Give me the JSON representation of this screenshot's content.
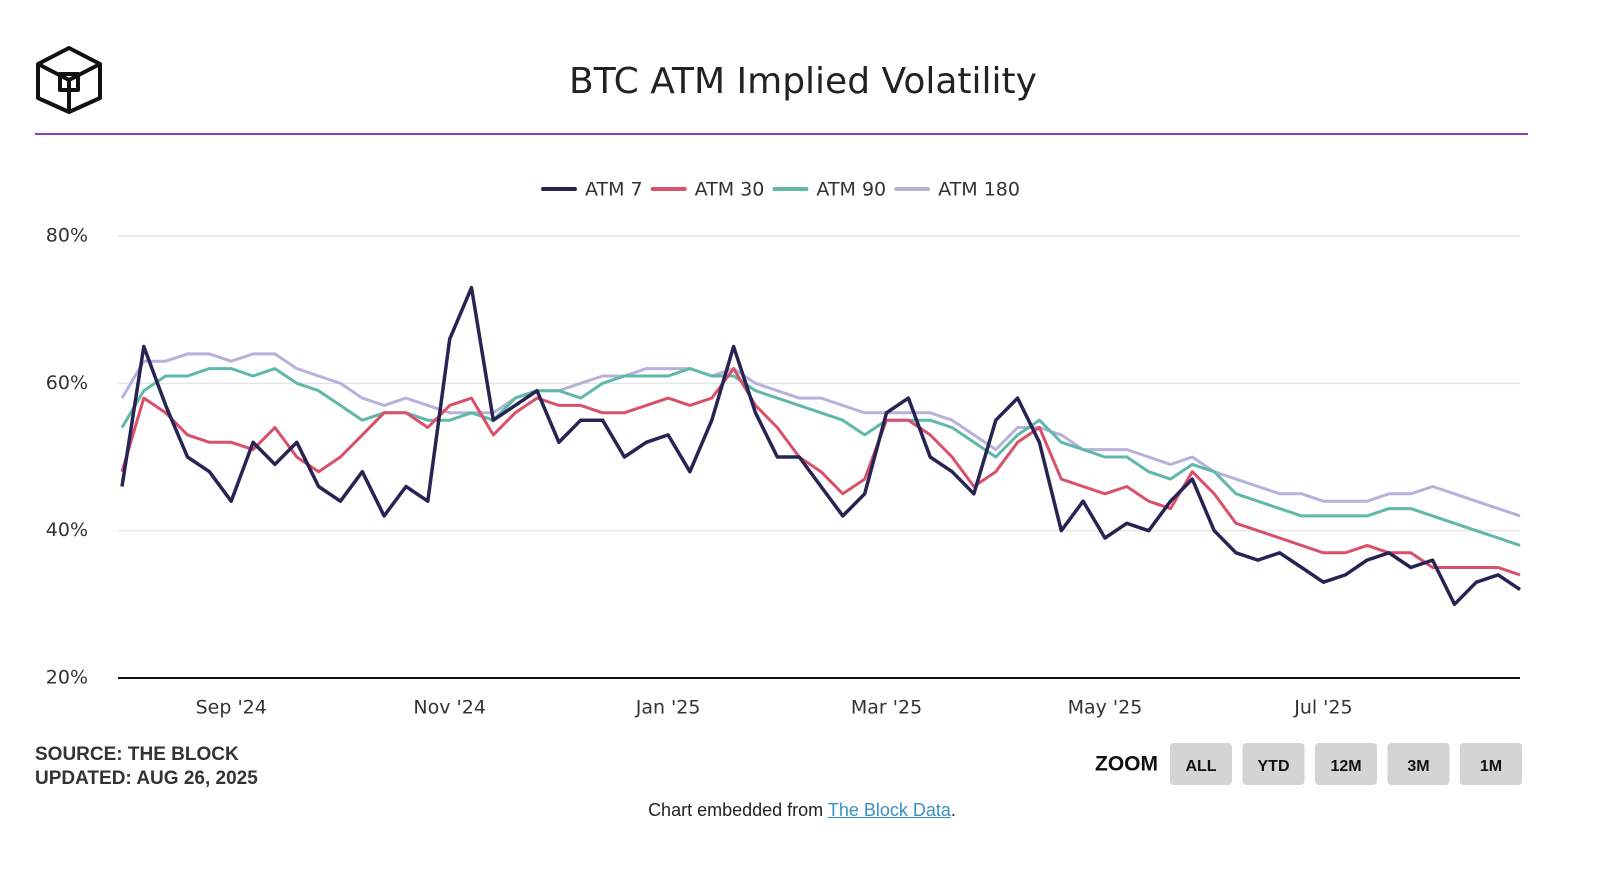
{
  "chart_data": {
    "type": "line",
    "title": "BTC ATM Implied Volatility",
    "categories": [
      null,
      null,
      null,
      null,
      null,
      "Sep '24",
      null,
      null,
      null,
      null,
      null,
      null,
      null,
      null,
      null,
      "Nov '24",
      null,
      null,
      null,
      null,
      null,
      null,
      null,
      null,
      null,
      "Jan '25",
      null,
      null,
      null,
      null,
      null,
      null,
      null,
      null,
      null,
      "Mar '25",
      null,
      null,
      null,
      null,
      null,
      null,
      null,
      null,
      null,
      "May '25",
      null,
      null,
      null,
      null,
      null,
      null,
      null,
      null,
      null,
      "Jul '25",
      null,
      null,
      null,
      null,
      null,
      null,
      null,
      null,
      null
    ],
    "series": [
      {
        "name": "ATM 7",
        "color": "#272454",
        "values": [
          46,
          65,
          57,
          50,
          48,
          44,
          52,
          49,
          52,
          46,
          44,
          48,
          42,
          46,
          44,
          66,
          73,
          55,
          57,
          59,
          52,
          55,
          55,
          50,
          52,
          53,
          48,
          55,
          65,
          56,
          50,
          50,
          46,
          42,
          45,
          56,
          58,
          50,
          48,
          45,
          55,
          58,
          52,
          40,
          44,
          39,
          41,
          40,
          44,
          47,
          40,
          37,
          36,
          37,
          35,
          33,
          34,
          36,
          37,
          35,
          36,
          30,
          33,
          34,
          32
        ]
      },
      {
        "name": "ATM 30",
        "color": "#d9506a",
        "values": [
          48,
          58,
          56,
          53,
          52,
          52,
          51,
          54,
          50,
          48,
          50,
          53,
          56,
          56,
          54,
          57,
          58,
          53,
          56,
          58,
          57,
          57,
          56,
          56,
          57,
          58,
          57,
          58,
          62,
          57,
          54,
          50,
          48,
          45,
          47,
          55,
          55,
          53,
          50,
          46,
          48,
          52,
          54,
          47,
          46,
          45,
          46,
          44,
          43,
          48,
          45,
          41,
          40,
          39,
          38,
          37,
          37,
          38,
          37,
          37,
          35,
          35,
          35,
          35,
          34
        ]
      },
      {
        "name": "ATM 90",
        "color": "#5fb8a8",
        "values": [
          54,
          59,
          61,
          61,
          62,
          62,
          61,
          62,
          60,
          59,
          57,
          55,
          56,
          56,
          55,
          55,
          56,
          55,
          58,
          59,
          59,
          58,
          60,
          61,
          61,
          61,
          62,
          61,
          61,
          59,
          58,
          57,
          56,
          55,
          53,
          55,
          55,
          55,
          54,
          52,
          50,
          53,
          55,
          52,
          51,
          50,
          50,
          48,
          47,
          49,
          48,
          45,
          44,
          43,
          42,
          42,
          42,
          42,
          43,
          43,
          42,
          41,
          40,
          39,
          38
        ]
      },
      {
        "name": "ATM 180",
        "color": "#b8b1dc",
        "values": [
          58,
          63,
          63,
          64,
          64,
          63,
          64,
          64,
          62,
          61,
          60,
          58,
          57,
          58,
          57,
          56,
          56,
          56,
          58,
          59,
          59,
          60,
          61,
          61,
          62,
          62,
          62,
          61,
          62,
          60,
          59,
          58,
          58,
          57,
          56,
          56,
          56,
          56,
          55,
          53,
          51,
          54,
          54,
          53,
          51,
          51,
          51,
          50,
          49,
          50,
          48,
          47,
          46,
          45,
          45,
          44,
          44,
          44,
          45,
          45,
          46,
          45,
          44,
          43,
          42
        ]
      }
    ],
    "ylim": [
      20,
      80
    ],
    "yticks": [
      {
        "value": 20,
        "label": "20%"
      },
      {
        "value": 40,
        "label": "40%"
      },
      {
        "value": 60,
        "label": "60%"
      },
      {
        "value": 80,
        "label": "80%"
      }
    ],
    "grid": true
  },
  "source": "SOURCE: THE BLOCK",
  "updated": "UPDATED: AUG 26, 2025",
  "zoom": {
    "label": "ZOOM",
    "buttons": [
      "ALL",
      "YTD",
      "12M",
      "3M",
      "1M"
    ]
  },
  "footer": {
    "text": "Chart embedded from",
    "link": "The Block Data",
    "end": "."
  }
}
